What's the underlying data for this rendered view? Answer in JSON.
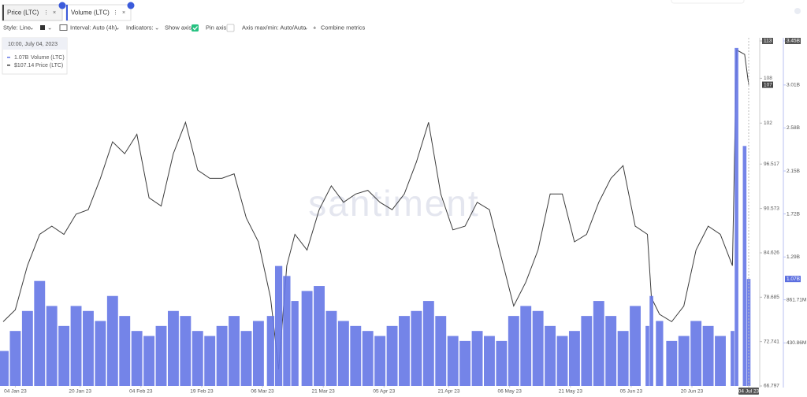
{
  "tabs_note_free": null,
  "toolbar": {
    "style": "Style: Line",
    "interval": "Interval: Auto (4h)",
    "indicators": "Indicators:",
    "show_axis": "Show axis",
    "pin_axis": "Pin axis",
    "axis_minmax": "Axis max/min: Auto/Auto",
    "combine": "Combine metrics"
  },
  "tooltip": {
    "date": "10:00, July 04, 2023",
    "volume": "1.07B",
    "price": "$107.14"
  },
  "watermark": "santiment",
  "chart_data": {
    "type": "line",
    "current_labels": {
      "price": "107",
      "volume": "1.07B"
    },
    "x": [
      "2023-01-01",
      "2023-01-04",
      "2023-01-07",
      "2023-01-10",
      "2023-01-13",
      "2023-01-16",
      "2023-01-19",
      "2023-01-22",
      "2023-01-25",
      "2023-01-28",
      "2023-01-31",
      "2023-02-03",
      "2023-02-06",
      "2023-02-09",
      "2023-02-12",
      "2023-02-15",
      "2023-02-18",
      "2023-02-21",
      "2023-02-24",
      "2023-02-27",
      "2023-03-02",
      "2023-03-05",
      "2023-03-08",
      "2023-03-10",
      "2023-03-12",
      "2023-03-14",
      "2023-03-17",
      "2023-03-20",
      "2023-03-23",
      "2023-03-26",
      "2023-03-29",
      "2023-04-01",
      "2023-04-04",
      "2023-04-07",
      "2023-04-10",
      "2023-04-13",
      "2023-04-16",
      "2023-04-19",
      "2023-04-22",
      "2023-04-25",
      "2023-04-28",
      "2023-05-01",
      "2023-05-04",
      "2023-05-07",
      "2023-05-10",
      "2023-05-13",
      "2023-05-16",
      "2023-05-19",
      "2023-05-22",
      "2023-05-25",
      "2023-05-28",
      "2023-05-31",
      "2023-06-03",
      "2023-06-06",
      "2023-06-09",
      "2023-06-10",
      "2023-06-12",
      "2023-06-15",
      "2023-06-18",
      "2023-06-21",
      "2023-06-24",
      "2023-06-27",
      "2023-06-30",
      "2023-07-01",
      "2023-07-03",
      "2023-07-04"
    ],
    "xlim": [
      "2023-01-01",
      "2023-07-04"
    ],
    "xticks": [
      {
        "value": "2023-01-04",
        "label": "04 Jan 23"
      },
      {
        "value": "2023-01-20",
        "label": "20 Jan 23"
      },
      {
        "value": "2023-02-04",
        "label": "04 Feb 23"
      },
      {
        "value": "2023-02-19",
        "label": "19 Feb 23"
      },
      {
        "value": "2023-03-06",
        "label": "06 Mar 23"
      },
      {
        "value": "2023-03-21",
        "label": "21 Mar 23"
      },
      {
        "value": "2023-04-05",
        "label": "05 Apr 23"
      },
      {
        "value": "2023-04-21",
        "label": "21 Apr 23"
      },
      {
        "value": "2023-05-06",
        "label": "06 May 23"
      },
      {
        "value": "2023-05-21",
        "label": "21 May 23"
      },
      {
        "value": "2023-06-05",
        "label": "05 Jun 23"
      },
      {
        "value": "2023-06-20",
        "label": "20 Jun 23"
      },
      {
        "value": "2023-07-04",
        "label": "04 Jul 23"
      }
    ],
    "ylim": [
      66.797,
      113
    ],
    "yticks": [
      66.797,
      72.741,
      78.685,
      84.626,
      90.573,
      96.517,
      102,
      108,
      113
    ],
    "y2lim": [
      0,
      3450000000
    ],
    "y2ticks": [
      {
        "value": 430860000,
        "label": "430.86M"
      },
      {
        "value": 861710000,
        "label": "861.71M"
      },
      {
        "value": 1290000000,
        "label": "1.29B"
      },
      {
        "value": 1720000000,
        "label": "1.72B"
      },
      {
        "value": 2150000000,
        "label": "2.15B"
      },
      {
        "value": 2580000000,
        "label": "2.58B"
      },
      {
        "value": 3010000000,
        "label": "3.01B"
      },
      {
        "value": 3450000000,
        "label": "3.45B"
      }
    ],
    "series": [
      {
        "name": "Price (LTC)",
        "type": "line",
        "color": "#3c3c3c",
        "values": [
          75.4,
          77.0,
          82.9,
          87.1,
          88.2,
          87.1,
          89.8,
          90.4,
          94.6,
          99.5,
          97.9,
          100.5,
          92.0,
          90.9,
          97.9,
          102.1,
          95.7,
          94.6,
          94.6,
          95.2,
          89.3,
          86.1,
          78.6,
          69.0,
          82.9,
          87.1,
          85.0,
          90.4,
          93.6,
          91.4,
          92.5,
          93.0,
          91.4,
          90.4,
          92.5,
          96.8,
          102.1,
          92.5,
          87.7,
          88.2,
          91.4,
          90.4,
          83.9,
          77.5,
          80.7,
          85.0,
          92.5,
          92.5,
          86.1,
          87.1,
          91.4,
          94.6,
          96.3,
          88.2,
          87.1,
          78.6,
          76.4,
          75.4,
          77.5,
          85.0,
          88.2,
          87.1,
          82.9,
          111.8,
          111.2,
          107.14
        ]
      },
      {
        "name": "Volume (LTC)",
        "type": "bar",
        "axis": "y2",
        "color": "#6577e6",
        "values": [
          350000000,
          550000000,
          750000000,
          1050000000,
          800000000,
          600000000,
          800000000,
          750000000,
          650000000,
          900000000,
          700000000,
          550000000,
          500000000,
          600000000,
          750000000,
          700000000,
          550000000,
          500000000,
          600000000,
          700000000,
          550000000,
          650000000,
          700000000,
          1200000000,
          1100000000,
          850000000,
          950000000,
          1000000000,
          750000000,
          650000000,
          600000000,
          550000000,
          500000000,
          600000000,
          700000000,
          750000000,
          850000000,
          700000000,
          500000000,
          450000000,
          550000000,
          500000000,
          450000000,
          700000000,
          800000000,
          750000000,
          600000000,
          500000000,
          550000000,
          700000000,
          850000000,
          700000000,
          550000000,
          800000000,
          600000000,
          900000000,
          650000000,
          450000000,
          500000000,
          650000000,
          600000000,
          500000000,
          550000000,
          3380000000,
          2400000000,
          1070000000
        ]
      }
    ]
  }
}
